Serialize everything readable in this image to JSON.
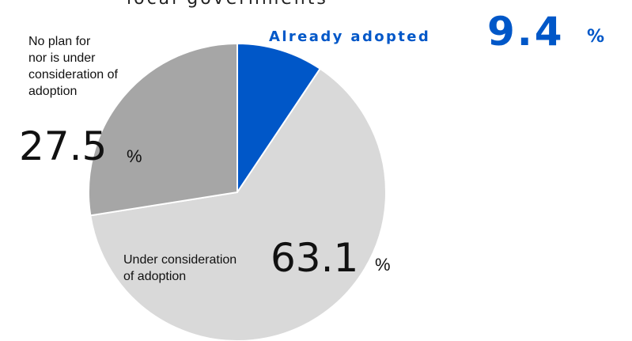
{
  "chart_data": {
    "type": "pie",
    "title_partial": "local governments",
    "slices": [
      {
        "label": "Already adopted",
        "value": 9.4,
        "value_text": "9.4",
        "color": "#0057c8"
      },
      {
        "label": "Under consideration of adoption",
        "value": 63.1,
        "value_text": "63.1",
        "color": "#d9d9d9"
      },
      {
        "label": "No plan for nor is under consideration of adoption",
        "value": 27.5,
        "value_text": "27.5",
        "color": "#a6a6a6"
      }
    ],
    "unit": "%",
    "stroke_color": "#ffffff",
    "label_accent_color": "#0057c8"
  },
  "labels": {
    "adopted": {
      "name": "Already adopted",
      "value": "9.4",
      "unit": "%"
    },
    "under": {
      "line1": "Under consideration",
      "line2": "of adoption",
      "value": "63.1",
      "unit": "%"
    },
    "noplan": {
      "line1": "No plan for",
      "line2": "nor is under",
      "line3": "consideration of",
      "line4": "adoption",
      "value": "27.5",
      "unit": "%"
    }
  }
}
